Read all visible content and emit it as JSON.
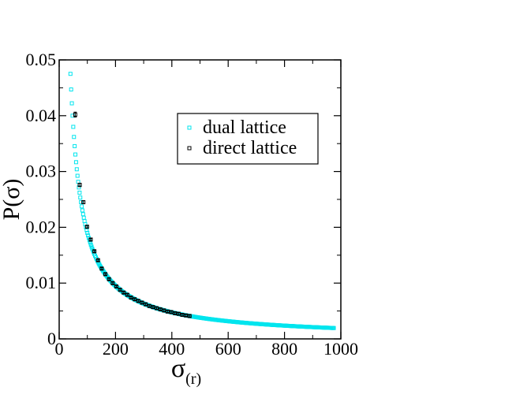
{
  "chart_data": {
    "type": "scatter",
    "xlabel": {
      "symbol": "σ",
      "subscript": "(r)"
    },
    "ylabel": "P(σ)",
    "xlim": [
      0,
      1000
    ],
    "ylim": [
      0,
      0.05
    ],
    "xticks": [
      "0",
      "200",
      "400",
      "600",
      "800",
      "1000"
    ],
    "yticks": [
      "0",
      "0.01",
      "0.02",
      "0.03",
      "0.04",
      "0.05"
    ],
    "grid": false,
    "legend_position": "top-right",
    "series": [
      {
        "name": "dual lattice",
        "color": "#00e5ee",
        "marker": "open-square",
        "x_range": [
          40,
          975
        ],
        "x_step": 2.5,
        "model": "P = 1.9 / sigma",
        "note": "dense curve of points"
      },
      {
        "name": "direct lattice",
        "color": "#000000",
        "marker": "open-square-with-errorbar",
        "x": [
          57,
          73,
          86,
          99,
          112,
          125,
          138,
          151,
          164,
          177,
          190,
          203,
          216,
          229,
          242,
          255,
          268,
          281,
          294,
          307,
          320,
          333,
          346,
          359,
          372,
          385,
          398,
          411,
          424,
          437,
          450,
          463
        ],
        "y": [
          0.0402,
          0.0276,
          0.0245,
          0.0201,
          0.0178,
          0.0157,
          0.0141,
          0.0126,
          0.0116,
          0.0107,
          0.01,
          0.0094,
          0.0088,
          0.0083,
          0.0079,
          0.0074,
          0.0071,
          0.0068,
          0.0065,
          0.0062,
          0.0059,
          0.0057,
          0.0055,
          0.0053,
          0.0051,
          0.0049,
          0.0048,
          0.0046,
          0.0045,
          0.0043,
          0.0042,
          0.0041
        ]
      }
    ]
  }
}
